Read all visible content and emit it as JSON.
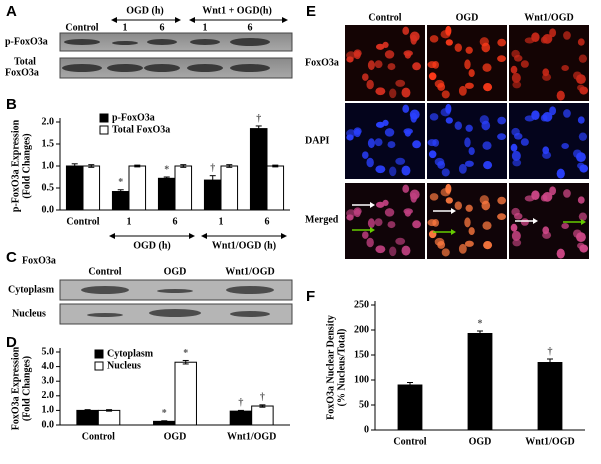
{
  "panel_a": {
    "letter": "A",
    "headers": [
      "Control",
      "OGD (h)",
      "Wnt1 + OGD(h)"
    ],
    "times": [
      "1",
      "6",
      "1",
      "6"
    ],
    "row_labels": [
      [
        "p-FoxO3a"
      ],
      [
        "Total",
        "FoxO3a"
      ]
    ]
  },
  "panel_c": {
    "letter": "C",
    "title": "FoxO3a",
    "columns": [
      "Control",
      "OGD",
      "Wnt1/OGD"
    ],
    "rows": [
      "Cytoplasm",
      "Nucleus"
    ]
  },
  "panel_e": {
    "letter": "E",
    "columns": [
      "Control",
      "OGD",
      "Wnt1/OGD"
    ],
    "rows": [
      "FoxO3a",
      "DAPI",
      "Merged"
    ]
  },
  "chart_data": [
    {
      "type": "bar",
      "letter": "B",
      "ylabel": [
        "p-FoxO3a Expression",
        "(Fold Changes)"
      ],
      "categories": [
        "Control",
        "1",
        "6",
        "1",
        "6"
      ],
      "group_labels": [
        "OGD (h)",
        "Wnt1/OGD (h)"
      ],
      "series": [
        {
          "name": "p-FoxO3a",
          "color": "#000000",
          "values": [
            1.0,
            0.42,
            0.72,
            0.68,
            1.85
          ],
          "errors": [
            0.05,
            0.04,
            0.03,
            0.1,
            0.06
          ],
          "markers": [
            null,
            "*",
            "*",
            "†",
            "†"
          ]
        },
        {
          "name": "Total FoxO3a",
          "color": "#ffffff",
          "values": [
            1.0,
            1.0,
            1.0,
            1.0,
            1.0
          ],
          "errors": [
            0.03,
            0.02,
            0.03,
            0.03,
            0.02
          ],
          "markers": [
            null,
            null,
            null,
            null,
            null
          ]
        }
      ],
      "ylim": [
        0,
        2
      ],
      "yticks": [
        {
          "value": 0,
          "label": "0.0"
        },
        0.5,
        {
          "value": 1,
          "label": "1.0"
        },
        1.5,
        {
          "value": 2,
          "label": "2.0"
        }
      ]
    },
    {
      "type": "bar",
      "letter": "D",
      "ylabel": [
        "FoxO3a Expression",
        "(Fold Changes)"
      ],
      "categories": [
        "Control",
        "OGD",
        "Wnt1/OGD"
      ],
      "series": [
        {
          "name": "Cytoplasm",
          "color": "#000000",
          "values": [
            1.0,
            0.25,
            0.95
          ],
          "errors": [
            0.05,
            0.04,
            0.05
          ],
          "markers": [
            null,
            "*",
            "†"
          ]
        },
        {
          "name": "Nucleus",
          "color": "#ffffff",
          "values": [
            1.0,
            4.3,
            1.3
          ],
          "errors": [
            0.05,
            0.12,
            0.08
          ],
          "markers": [
            null,
            "*",
            "†"
          ]
        }
      ],
      "ylim": [
        0,
        5
      ],
      "yticks": [
        {
          "value": 0,
          "label": "0.0"
        },
        {
          "value": 1,
          "label": "1.0"
        },
        {
          "value": 2,
          "label": "2.0"
        },
        {
          "value": 3,
          "label": "3.0"
        },
        {
          "value": 4,
          "label": "4.0"
        },
        {
          "value": 5,
          "label": "5.0"
        }
      ]
    },
    {
      "type": "bar",
      "letter": "F",
      "ylabel": [
        "FoxO3a Nuclear Density",
        "(% Nucleus/Total)"
      ],
      "categories": [
        "Control",
        "OGD",
        "Wnt1/OGD"
      ],
      "color": "#000000",
      "values": [
        90,
        193,
        135
      ],
      "errors": [
        5,
        5,
        7
      ],
      "markers": [
        null,
        "*",
        "†"
      ],
      "ylim": [
        0,
        250
      ],
      "yticks": [
        0,
        50,
        100,
        150,
        200,
        250
      ]
    }
  ]
}
